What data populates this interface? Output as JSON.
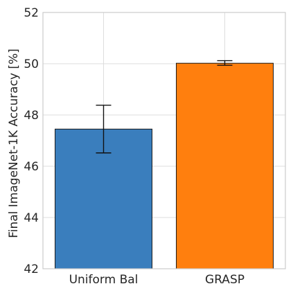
{
  "chart_data": {
    "type": "bar",
    "title": "",
    "xlabel": "",
    "ylabel": "Final ImageNet-1K Accuracy [%]",
    "categories": [
      "Uniform Bal",
      "GRASP"
    ],
    "values": [
      47.45,
      50.02
    ],
    "error_low": [
      46.52,
      49.94
    ],
    "error_high": [
      48.38,
      50.12
    ],
    "bar_colors": [
      "#3a7ebd",
      "#ff7f0e"
    ],
    "ylim": [
      42,
      52
    ],
    "yticks": [
      "42",
      "44",
      "46",
      "48",
      "50",
      "52"
    ],
    "grid": true
  }
}
